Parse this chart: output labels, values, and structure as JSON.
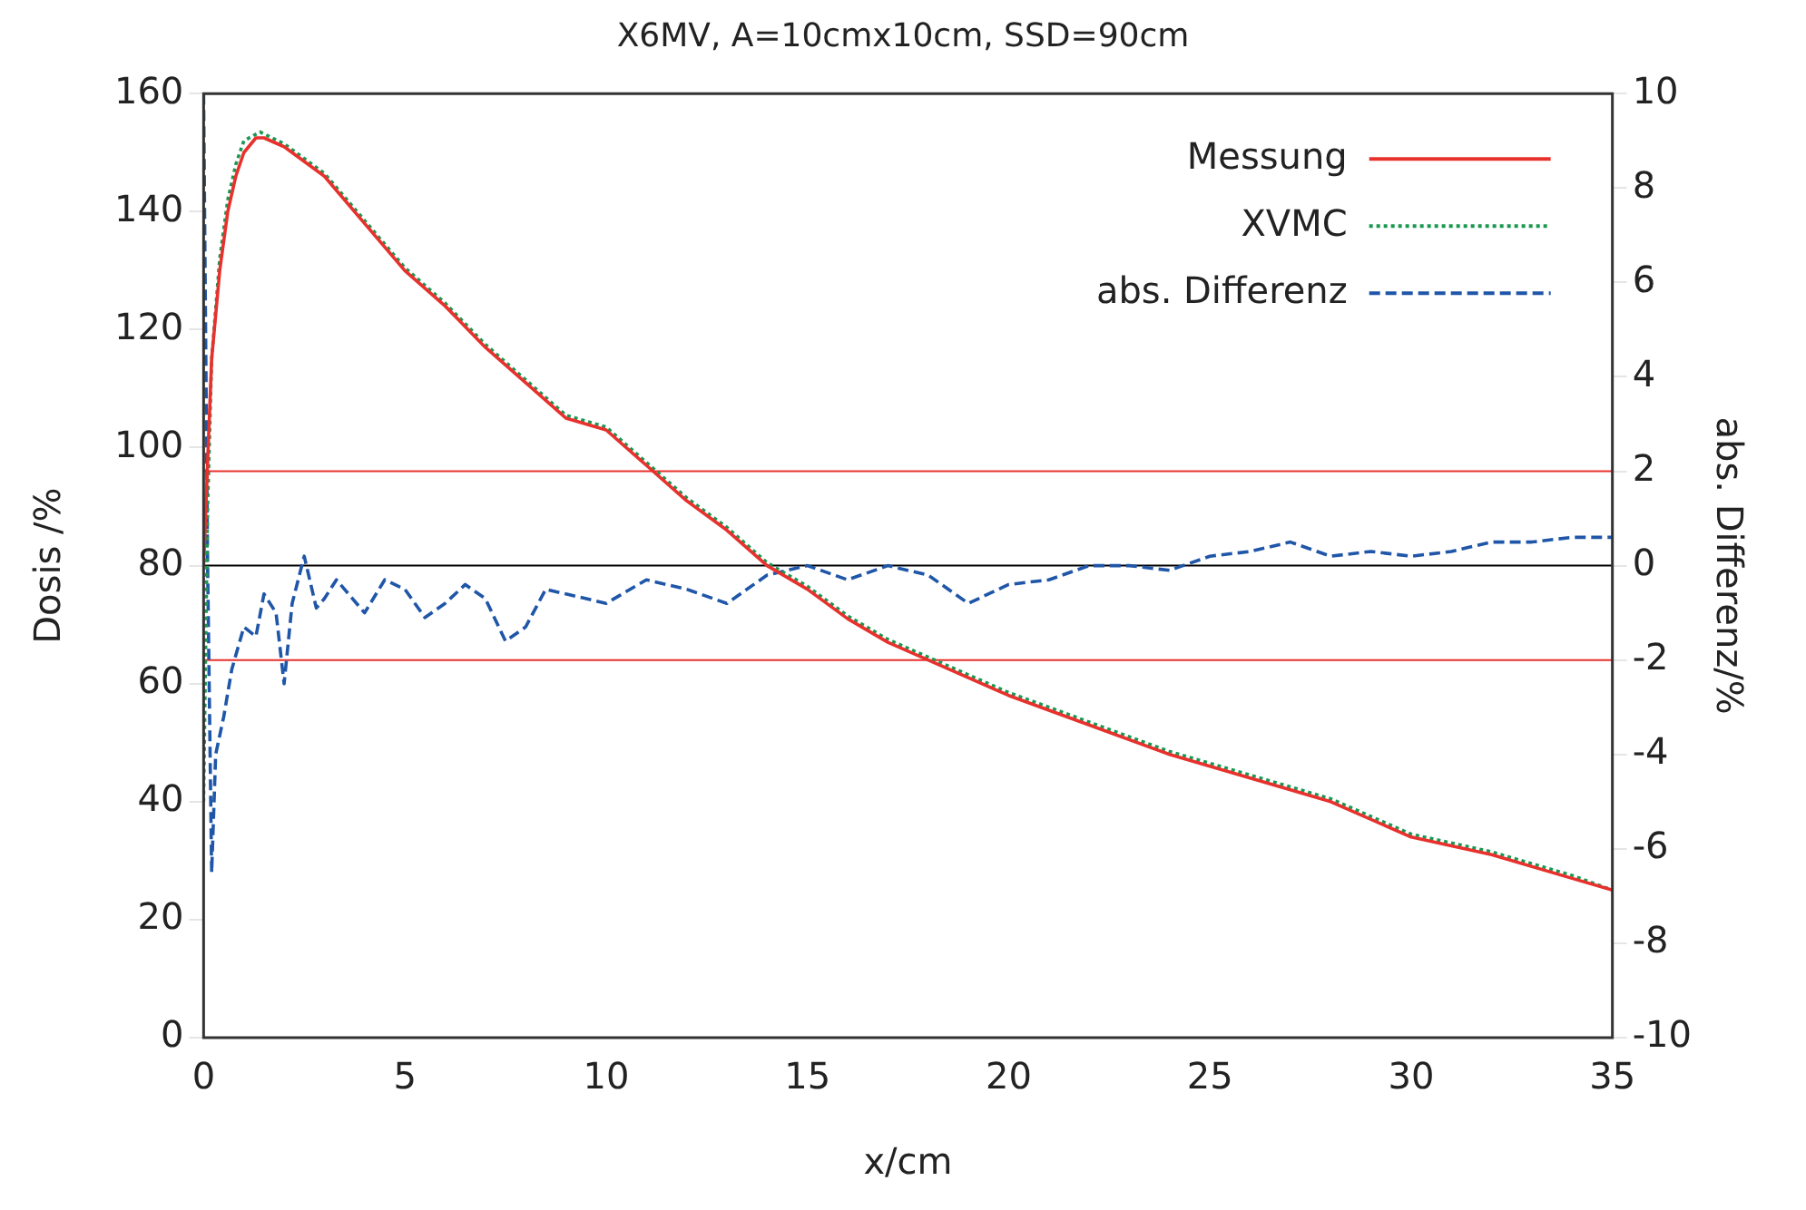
{
  "chart_data": {
    "type": "line",
    "title": "X6MV, A=10cmx10cm, SSD=90cm",
    "xlabel": "x/cm",
    "ylabel": "Dosis /%",
    "y2label": "abs. Differenz/%",
    "xlim": [
      0,
      35
    ],
    "xticks": [
      0,
      5,
      10,
      15,
      20,
      25,
      30,
      35
    ],
    "ylim": [
      0,
      160
    ],
    "yticks": [
      0,
      20,
      40,
      60,
      80,
      100,
      120,
      140,
      160
    ],
    "y2lim": [
      -10,
      10
    ],
    "y2ticks": [
      -10,
      -8,
      -6,
      -4,
      -2,
      0,
      2,
      4,
      6,
      8,
      10
    ],
    "grid": false,
    "legend": "top right",
    "marker": "none",
    "series": [
      {
        "name": "Messung",
        "color": "#e8312d",
        "line_style": "solid",
        "x": [
          0,
          0.2,
          0.4,
          0.6,
          0.8,
          1.0,
          1.3,
          1.5,
          2,
          3,
          4,
          5,
          6,
          7,
          8,
          9,
          10,
          11,
          12,
          13,
          14,
          15,
          16,
          17,
          18,
          20,
          22,
          24,
          26,
          28,
          30,
          32,
          34,
          35
        ],
        "values": [
          80,
          115,
          130,
          140,
          146,
          150,
          152.5,
          152.5,
          151,
          146,
          138,
          130,
          124,
          117,
          111,
          105,
          103,
          97,
          91,
          86,
          80,
          76,
          71,
          67,
          64,
          58,
          53,
          48,
          44,
          40,
          34,
          31,
          27,
          25
        ]
      },
      {
        "name": "XVMC",
        "color": "#1a9850",
        "line_style": "dotted",
        "x": [
          0,
          0.1,
          0.2,
          0.4,
          0.6,
          0.8,
          1.0,
          1.4,
          2,
          3,
          4,
          5,
          6,
          7,
          8,
          9,
          10,
          11,
          12,
          13,
          14,
          15,
          16,
          17,
          18,
          20,
          22,
          24,
          26,
          28,
          30,
          32,
          34,
          35
        ],
        "values": [
          40,
          90,
          115,
          132,
          142,
          148,
          152,
          153.5,
          151.5,
          146.5,
          138.5,
          130.5,
          124.5,
          117.5,
          111.5,
          105.5,
          103.5,
          97.5,
          91.5,
          86.5,
          80.5,
          76.5,
          71.5,
          67.5,
          64.5,
          58.5,
          53.5,
          48.5,
          44.5,
          40.5,
          34.5,
          31.5,
          27.5,
          25
        ]
      },
      {
        "name": "abs. Differenz",
        "color": "#1f56a8",
        "line_style": "dashed",
        "axis": "y2",
        "x": [
          0,
          0.1,
          0.2,
          0.3,
          0.5,
          0.7,
          1.0,
          1.3,
          1.5,
          1.8,
          2.0,
          2.2,
          2.5,
          2.8,
          3,
          3.3,
          3.5,
          4,
          4.5,
          5,
          5.5,
          6,
          6.5,
          7,
          7.5,
          8,
          8.5,
          9,
          10,
          11,
          12,
          13,
          14,
          15,
          16,
          17,
          18,
          19,
          20,
          21,
          22,
          23,
          24,
          25,
          26,
          27,
          28,
          29,
          30,
          31,
          32,
          33,
          34,
          35
        ],
        "values": [
          10,
          0,
          -6.5,
          -4,
          -3.2,
          -2.2,
          -1.3,
          -1.5,
          -0.6,
          -1,
          -2.5,
          -0.8,
          0.2,
          -0.9,
          -0.7,
          -0.3,
          -0.5,
          -1,
          -0.3,
          -0.5,
          -1.1,
          -0.8,
          -0.4,
          -0.7,
          -1.6,
          -1.3,
          -0.5,
          -0.6,
          -0.8,
          -0.3,
          -0.5,
          -0.8,
          -0.2,
          0,
          -0.3,
          0,
          -0.2,
          -0.8,
          -0.4,
          -0.3,
          0,
          0,
          -0.1,
          0.2,
          0.3,
          0.5,
          0.2,
          0.3,
          0.2,
          0.3,
          0.5,
          0.5,
          0.6,
          0.6
        ]
      }
    ],
    "ref_lines": [
      {
        "axis": "y2",
        "value": 2,
        "color": "#e8312d"
      },
      {
        "axis": "y2",
        "value": 0,
        "color": "#000000"
      },
      {
        "axis": "y2",
        "value": -2,
        "color": "#e8312d"
      }
    ]
  }
}
